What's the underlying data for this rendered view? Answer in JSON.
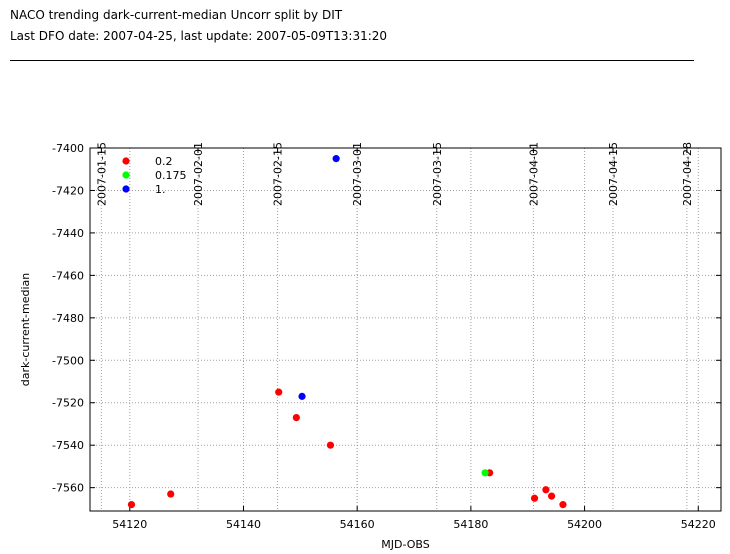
{
  "header": {
    "title": "NACO trending dark-current-median Uncorr split by DIT",
    "subtitle": "Last DFO date: 2007-04-25, last update: 2007-05-09T13:31:20"
  },
  "chart_data": {
    "type": "scatter",
    "xlabel": "MJD-OBS",
    "ylabel": "dark-current-median",
    "xlim": [
      54113,
      54224
    ],
    "ylim": [
      -7571,
      -7400
    ],
    "x_ticks": [
      54120,
      54140,
      54160,
      54180,
      54200,
      54220
    ],
    "y_ticks": [
      -7400,
      -7420,
      -7440,
      -7460,
      -7480,
      -7500,
      -7520,
      -7540,
      -7560
    ],
    "top_axis": {
      "scale": "date",
      "tick_mjd": [
        54115,
        54132,
        54146,
        54160,
        54174,
        54191,
        54205,
        54218
      ],
      "tick_labels": [
        "2007-01-15",
        "2007-02-01",
        "2007-02-15",
        "2007-03-01",
        "2007-03-15",
        "2007-04-01",
        "2007-04-15",
        "2007-04-28"
      ]
    },
    "grid": true,
    "legend_position": "top-left",
    "series": [
      {
        "name": "0.2",
        "color": "#ff0000",
        "points": [
          [
            54120.3,
            -7568
          ],
          [
            54127.2,
            -7563
          ],
          [
            54146.2,
            -7515
          ],
          [
            54149.3,
            -7527
          ],
          [
            54155.3,
            -7540
          ],
          [
            54183.3,
            -7553
          ],
          [
            54191.2,
            -7565
          ],
          [
            54193.2,
            -7561
          ],
          [
            54194.2,
            -7564
          ],
          [
            54196.2,
            -7568
          ]
        ]
      },
      {
        "name": "0.175",
        "color": "#00ff00",
        "points": [
          [
            54182.5,
            -7553
          ]
        ]
      },
      {
        "name": "1.",
        "color": "#0000ff",
        "points": [
          [
            54150.3,
            -7517
          ],
          [
            54156.3,
            -7405
          ]
        ]
      }
    ]
  }
}
